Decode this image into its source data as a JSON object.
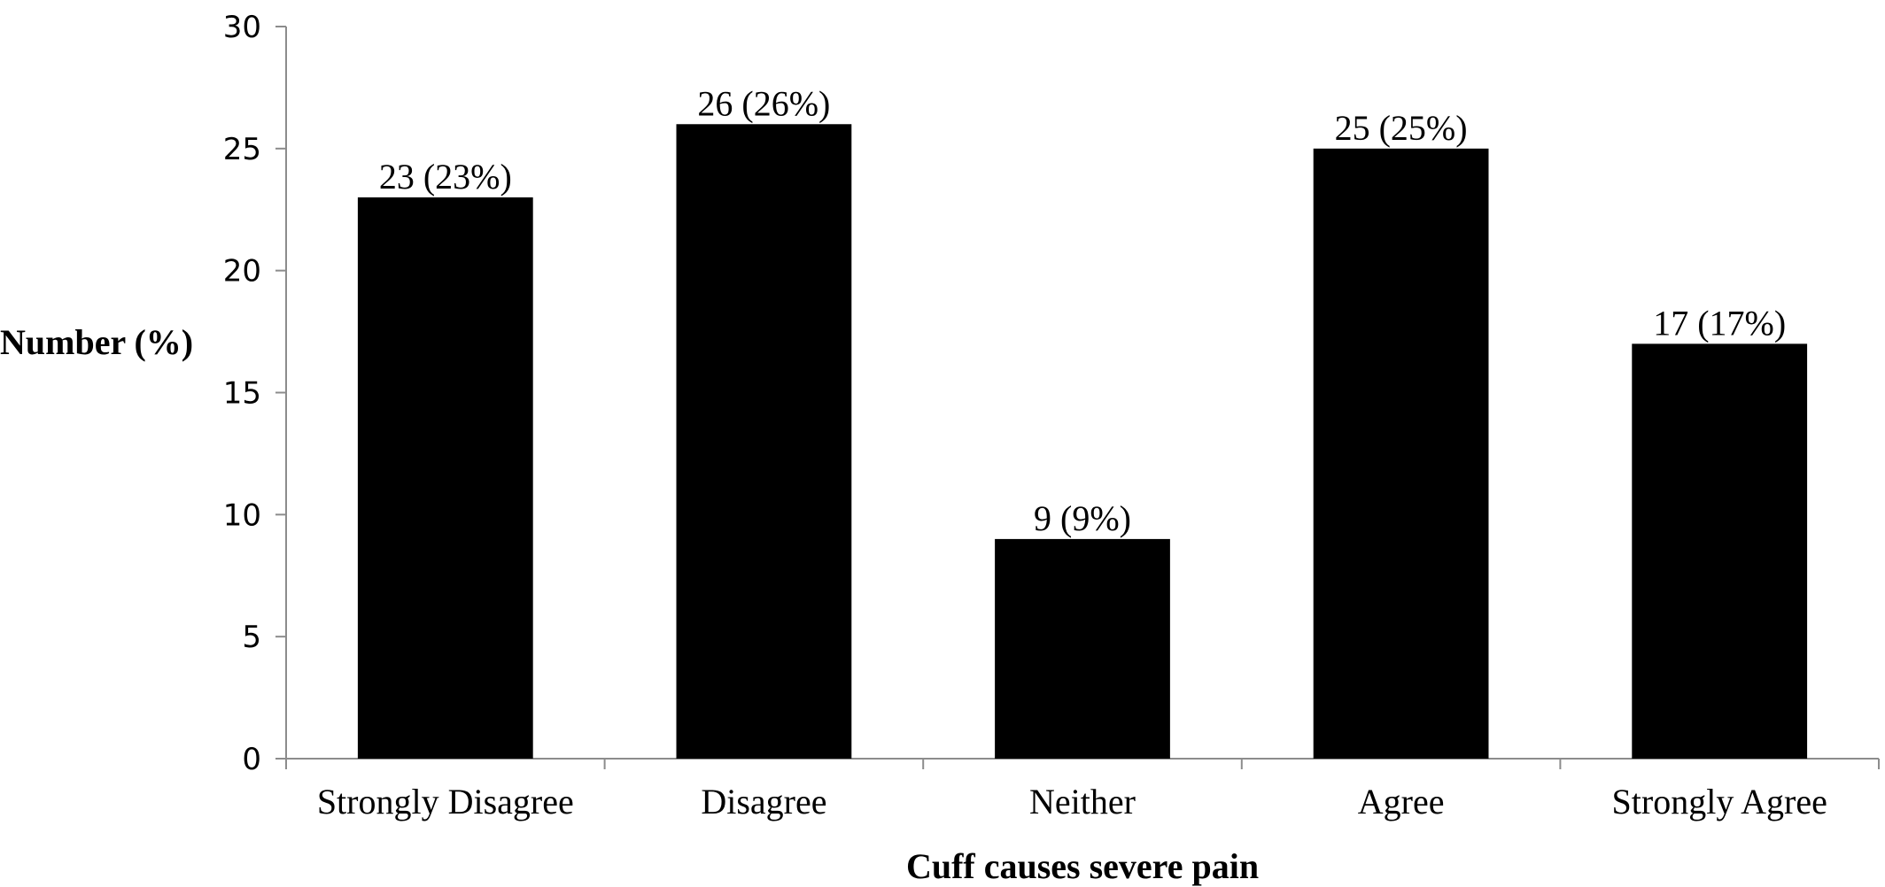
{
  "chart_data": {
    "type": "bar",
    "title": "",
    "xlabel": "Cuff causes severe pain",
    "ylabel": "Number (%)",
    "categories": [
      "Strongly Disagree",
      "Disagree",
      "Neither",
      "Agree",
      "Strongly Agree"
    ],
    "values": [
      23,
      26,
      9,
      25,
      17
    ],
    "data_labels": [
      "23 (23%)",
      "26 (26%)",
      "9 (9%)",
      "25 (25%)",
      "17 (17%)"
    ],
    "ylim": [
      0,
      30
    ],
    "yticks": [
      0,
      5,
      10,
      15,
      20,
      25,
      30
    ],
    "grid": false,
    "legend": "none",
    "bar_color": "#000000",
    "axis_color": "#8c8c8c"
  }
}
